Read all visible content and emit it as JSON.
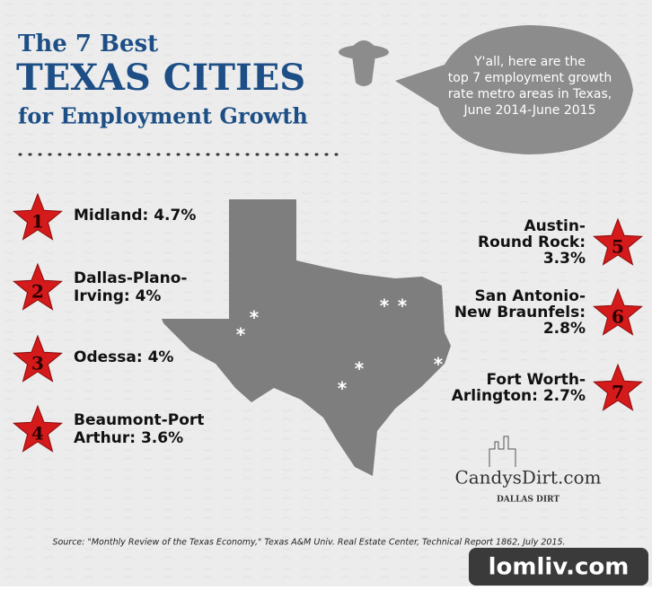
{
  "header": {
    "title_lines": [
      "The 7 Best",
      "TEXAS CITIES",
      "for Employment Growth"
    ]
  },
  "bubble": {
    "lines": [
      "Y'all, here are the",
      "top 7 employment growth",
      "rate metro areas in Texas,",
      "June 2014-June 2015"
    ]
  },
  "cities_left": [
    {
      "rank": "1",
      "lines": [
        "Midland: 4.7%"
      ]
    },
    {
      "rank": "2",
      "lines": [
        "Dallas-Plano-",
        "Irving: 4%"
      ]
    },
    {
      "rank": "3",
      "lines": [
        "Odessa: 4%"
      ]
    },
    {
      "rank": "4",
      "lines": [
        "Beaumont-Port",
        "Arthur: 3.6%"
      ]
    }
  ],
  "cities_right": [
    {
      "rank": "5",
      "lines": [
        "Austin-",
        "Round Rock:",
        "3.3%"
      ]
    },
    {
      "rank": "6",
      "lines": [
        "San Antonio-",
        "New Braunfels:",
        "2.8%"
      ]
    },
    {
      "rank": "7",
      "lines": [
        "Fort Worth-",
        "Arlington: 2.7%"
      ]
    }
  ],
  "logo": {
    "name": "CandysDirt.com",
    "tagline": "DALLAS DIRT"
  },
  "source": "Source: \"Monthly Review of the Texas Economy,\" Texas A&M Univ. Real Estate Center, Technical Report 1862, July 2015.",
  "watermark": "lomliv.com"
}
